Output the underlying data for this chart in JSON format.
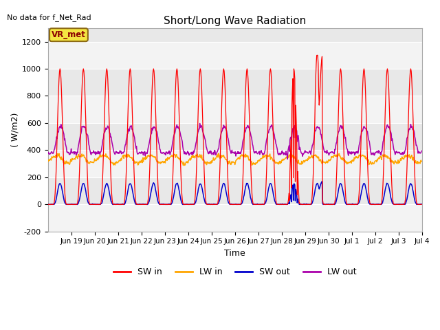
{
  "title": "Short/Long Wave Radiation",
  "xlabel": "Time",
  "ylabel": "( W/m2)",
  "ylim": [
    -200,
    1300
  ],
  "yticks": [
    -200,
    0,
    200,
    400,
    600,
    800,
    1000,
    1200
  ],
  "note": "No data for f_Net_Rad",
  "station_label": "VR_met",
  "legend_entries": [
    "SW in",
    "LW in",
    "SW out",
    "LW out"
  ],
  "legend_colors": [
    "#ff0000",
    "#ffa500",
    "#0000cc",
    "#aa00aa"
  ],
  "bg_color": "#ffffff",
  "plot_bg_color": "#e8e8e8",
  "grid_color": "#ffffff",
  "num_days": 16,
  "dt_hours": 0.5,
  "tick_labels": [
    "Jun 19",
    "Jun 20",
    "Jun 21",
    "Jun 22",
    "Jun 23",
    "Jun 24",
    "Jun 25",
    "Jun 26",
    "Jun 27",
    "Jun 28",
    "Jun 29",
    "Jun 30",
    "Jul 1",
    "Jul 2",
    "Jul 3",
    "Jul 4"
  ],
  "tick_positions": [
    1,
    2,
    3,
    4,
    5,
    6,
    7,
    8,
    9,
    10,
    11,
    12,
    13,
    14,
    15,
    16
  ]
}
